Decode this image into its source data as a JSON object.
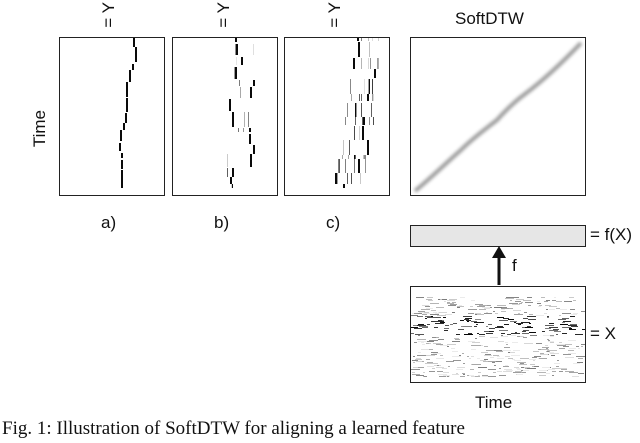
{
  "figure": {
    "axis_label_time_left": "Time",
    "axis_label_time_bottom": "Time",
    "y_label": "= Y",
    "panels": [
      {
        "label": "a)"
      },
      {
        "label": "b)"
      },
      {
        "label": "c)"
      }
    ],
    "softdtw_title": "SoftDTW",
    "fx_label": "= f(X)",
    "x_label": "= X",
    "f_label": "f",
    "caption": "Fig. 1:  Illustration of SoftDTW for aligning a learned feature"
  }
}
